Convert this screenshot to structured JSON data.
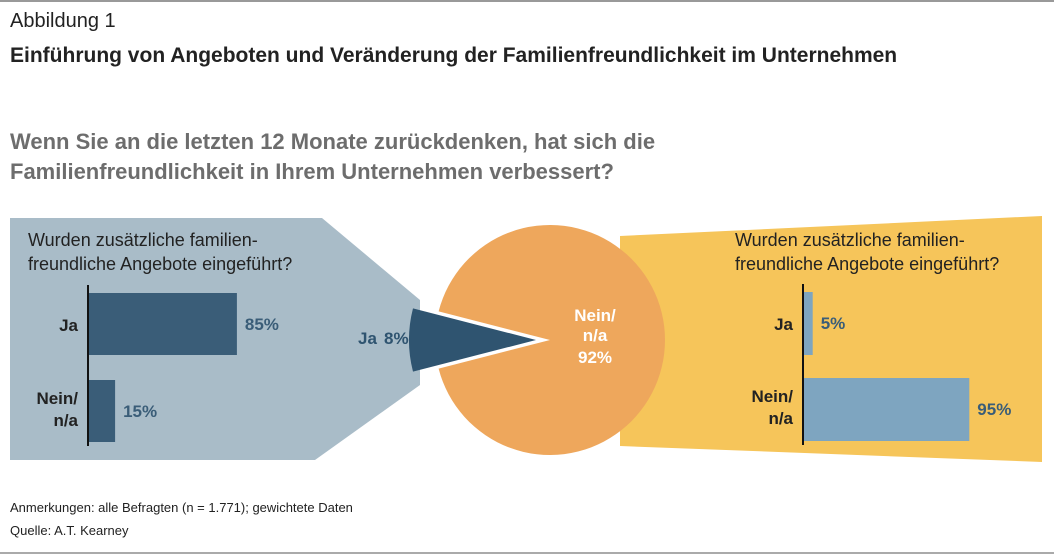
{
  "header": {
    "label": "Abbildung 1",
    "title": "Einführung von Angeboten und Veränderung der Familienfreundlichkeit im Unternehmen"
  },
  "chart_data": [
    {
      "type": "pie",
      "title": "Wenn Sie an die letzten 12 Monate zurückdenken, hat sich die Familienfreundlichkeit in Ihrem Unternehmen verbessert?",
      "categories": [
        "Ja",
        "Nein/ n/a"
      ],
      "values": [
        8,
        92
      ],
      "value_labels": [
        "8%",
        "92%"
      ],
      "colors": [
        "#2f5470",
        "#eea75c"
      ]
    },
    {
      "type": "bar",
      "title": "Wurden zusätzliche familien- freundliche Angebote eingeführt?",
      "categories": [
        "Ja",
        "Nein/ n/a"
      ],
      "values": [
        85,
        15
      ],
      "value_labels": [
        "85%",
        "15%"
      ],
      "color": "#3a5d78",
      "xlim": [
        0,
        100
      ]
    },
    {
      "type": "bar",
      "title": "Wurden zusätzliche familien- freundliche Angebote eingeführt?",
      "categories": [
        "Ja",
        "Nein/ n/a"
      ],
      "values": [
        5,
        95
      ],
      "value_labels": [
        "5%",
        "95%"
      ],
      "color": "#7ea5c0",
      "xlim": [
        0,
        100
      ]
    }
  ],
  "notes": [
    "Anmerkungen: alle Befragten (n = 1.771); gewichtete Daten",
    "Quelle: A.T. Kearney"
  ]
}
